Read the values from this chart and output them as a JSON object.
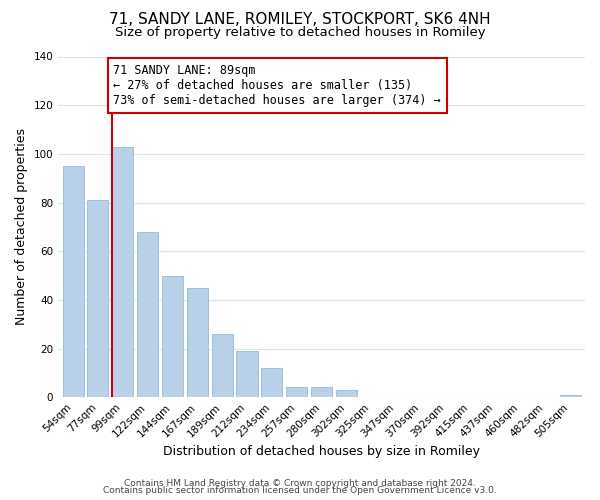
{
  "title": "71, SANDY LANE, ROMILEY, STOCKPORT, SK6 4NH",
  "subtitle": "Size of property relative to detached houses in Romiley",
  "xlabel": "Distribution of detached houses by size in Romiley",
  "ylabel": "Number of detached properties",
  "bar_labels": [
    "54sqm",
    "77sqm",
    "99sqm",
    "122sqm",
    "144sqm",
    "167sqm",
    "189sqm",
    "212sqm",
    "234sqm",
    "257sqm",
    "280sqm",
    "302sqm",
    "325sqm",
    "347sqm",
    "370sqm",
    "392sqm",
    "415sqm",
    "437sqm",
    "460sqm",
    "482sqm",
    "505sqm"
  ],
  "bar_values": [
    95,
    81,
    103,
    68,
    50,
    45,
    26,
    19,
    12,
    4,
    4,
    3,
    0,
    0,
    0,
    0,
    0,
    0,
    0,
    0,
    1
  ],
  "bar_color": "#b8d0e8",
  "bar_edge_color": "#9ab8d8",
  "vline_color": "#cc0000",
  "annotation_text": "71 SANDY LANE: 89sqm\n← 27% of detached houses are smaller (135)\n73% of semi-detached houses are larger (374) →",
  "annotation_box_color": "#ffffff",
  "annotation_box_edge": "#cc0000",
  "ylim": [
    0,
    140
  ],
  "yticks": [
    0,
    20,
    40,
    60,
    80,
    100,
    120,
    140
  ],
  "footer1": "Contains HM Land Registry data © Crown copyright and database right 2024.",
  "footer2": "Contains public sector information licensed under the Open Government Licence v3.0.",
  "bg_color": "#ffffff",
  "grid_color": "#d8e4f0",
  "title_fontsize": 11,
  "subtitle_fontsize": 9.5,
  "axis_label_fontsize": 9,
  "tick_fontsize": 7.5,
  "annotation_fontsize": 8.5,
  "footer_fontsize": 6.5
}
